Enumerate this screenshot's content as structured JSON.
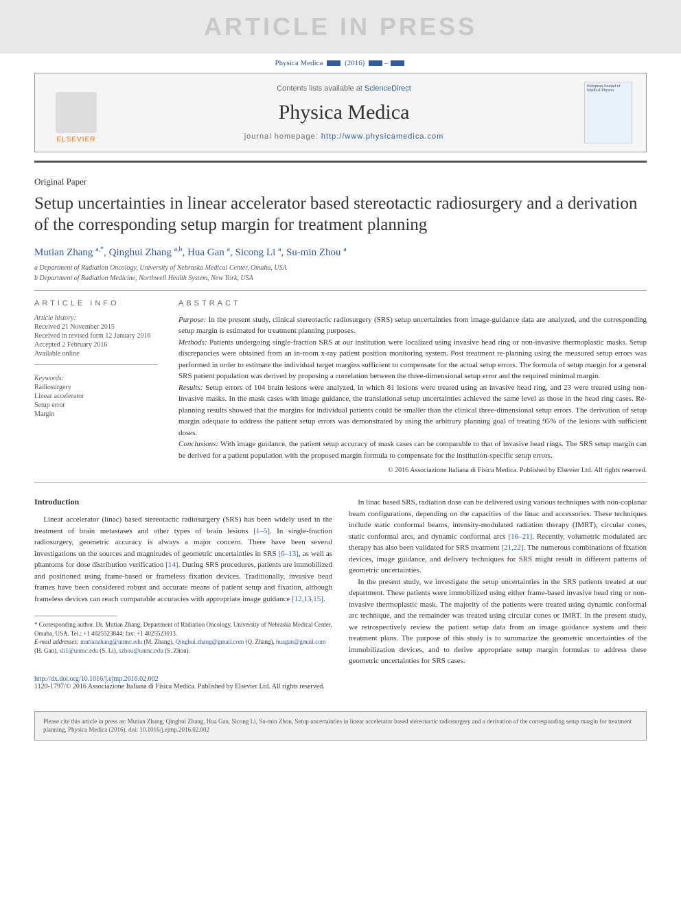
{
  "watermark": "ARTICLE IN PRESS",
  "journal_ref": {
    "name": "Physica Medica",
    "year": "(2016)"
  },
  "header": {
    "contents_text": "Contents lists available at ",
    "contents_link": "ScienceDirect",
    "journal_name": "Physica Medica",
    "homepage_label": "journal homepage: ",
    "homepage_url": "http://www.physicamedica.com",
    "publisher": "ELSEVIER",
    "cover_text": "European Journal of Medical Physics"
  },
  "article": {
    "type": "Original Paper",
    "title": "Setup uncertainties in linear accelerator based stereotactic radiosurgery and a derivation of the corresponding setup margin for treatment planning",
    "authors_html": "Mutian Zhang <sup>a,*</sup>, Qinghui Zhang <sup>a,b</sup>, Hua Gan <sup>a</sup>, Sicong Li <sup>a</sup>, Su-min Zhou <sup>a</sup>",
    "affiliations": [
      "a Department of Radiation Oncology, University of Nebraska Medical Center, Omaha, USA",
      "b Department of Radiation Medicine, Northwell Health System, New York, USA"
    ]
  },
  "info": {
    "heading": "ARTICLE INFO",
    "history_label": "Article history:",
    "history": [
      "Received 21 November 2015",
      "Received in revised form 12 January 2016",
      "Accepted 2 February 2016",
      "Available online"
    ],
    "keywords_label": "Keywords:",
    "keywords": [
      "Radiosurgery",
      "Linear accelerator",
      "Setup error",
      "Margin"
    ]
  },
  "abstract": {
    "heading": "ABSTRACT",
    "purpose_label": "Purpose:",
    "purpose": "In the present study, clinical stereotactic radiosurgery (SRS) setup uncertainties from image-guidance data are analyzed, and the corresponding setup margin is estimated for treatment planning purposes.",
    "methods_label": "Methods:",
    "methods": "Patients undergoing single-fraction SRS at our institution were localized using invasive head ring or non-invasive thermoplastic masks. Setup discrepancies were obtained from an in-room x-ray patient position monitoring system. Post treatment re-planning using the measured setup errors was performed in order to estimate the individual target margins sufficient to compensate for the actual setup errors. The formula of setup margin for a general SRS patient population was derived by proposing a correlation between the three-dimensional setup error and the required minimal margin.",
    "results_label": "Results:",
    "results": "Setup errors of 104 brain lesions were analyzed, in which 81 lesions were treated using an invasive head ring, and 23 were treated using non-invasive masks. In the mask cases with image guidance, the translational setup uncertainties achieved the same level as those in the head ring cases. Re-planning results showed that the margins for individual patients could be smaller than the clinical three-dimensional setup errors. The derivation of setup margin adequate to address the patient setup errors was demonstrated by using the arbitrary planning goal of treating 95% of the lesions with sufficient doses.",
    "conclusions_label": "Conclusions:",
    "conclusions": "With image guidance, the patient setup accuracy of mask cases can be comparable to that of invasive head rings. The SRS setup margin can be derived for a patient population with the proposed margin formula to compensate for the institution-specific setup errors.",
    "copyright": "© 2016 Associazione Italiana di Fisica Medica. Published by Elsevier Ltd. All rights reserved."
  },
  "body": {
    "intro_heading": "Introduction",
    "para1_pre": "Linear accelerator (linac) based stereotactic radiosurgery (SRS) has been widely used in the treatment of brain metastases and other types of brain lesions ",
    "ref1": "[1–5]",
    "para1_mid": ". In single-fraction radiosurgery, geometric accuracy is always a major concern. There have been several investigations on the sources and magnitudes of geometric uncertainties in SRS ",
    "ref2": "[6–13]",
    "para1_mid2": ", as well as phantoms for dose distribution verification ",
    "ref3": "[14]",
    "para1_mid3": ". During SRS procedures, patients are immobilized and positioned using frame-based or frameless fixation devices. Traditionally, invasive head frames have been considered robust and accurate means of patient setup and fixation, although frameless devices can reach comparable accuracies with appropriate image guidance ",
    "ref4": "[12,13,15]",
    "para1_end": ".",
    "para2_pre": "In linac based SRS, radiation dose can be delivered using various techniques with non-coplanar beam configurations, depending on the capacities of the linac and accessories. These techniques include static conformal beams, intensity-modulated radiation therapy (IMRT), circular cones, static conformal arcs, and dynamic conformal arcs ",
    "ref5": "[16–21]",
    "para2_mid": ". Recently, volumetric modulated arc therapy has also been validated for SRS treatment ",
    "ref6": "[21,22]",
    "para2_end": ". The numerous combinations of fixation devices, image guidance, and delivery techniques for SRS might result in different patterns of geometric uncertainties.",
    "para3": "In the present study, we investigate the setup uncertainties in the SRS patients treated at our department. These patients were immobilized using either frame-based invasive head ring or non-invasive thermoplastic mask. The majority of the patients were treated using dynamic conformal arc technique, and the remainder was treated using circular cones or IMRT. In the present study, we retrospectively review the patient setup data from an image guidance system and their treatment plans. The purpose of this study is to summarize the geometric uncertainties of the immobilization devices, and to derive appropriate setup margin formulas to address these geometric uncertainties for SRS cases."
  },
  "footnote": {
    "corresponding": "* Corresponding author. Dr. Mutian Zhang, Department of Radiation Oncology, University of Nebraska Medical Center, Omaha, USA. Tel.: +1 4025523844; fax: +1 4025523013.",
    "emails_label": "E-mail addresses:",
    "emails": [
      {
        "addr": "mutianzhang@unmc.edu",
        "name": "(M. Zhang)"
      },
      {
        "addr": "Qinghui.zhang@gmail.com",
        "name": "(Q. Zhang)"
      },
      {
        "addr": "huagan@gmail.com",
        "name": "(H. Gan)"
      },
      {
        "addr": "sli1@unmc.edu",
        "name": "(S. Li)"
      },
      {
        "addr": "szhou@unmc.edu",
        "name": "(S. Zhou)"
      }
    ]
  },
  "doi": {
    "url": "http://dx.doi.org/10.1016/j.ejmp.2016.02.002",
    "issn_line": "1120-1797/© 2016 Associazione Italiana di Fisica Medica. Published by Elsevier Ltd. All rights reserved."
  },
  "cite_box": "Please cite this article in press as: Mutian Zhang, Qinghui Zhang, Hua Gan, Sicong Li, Su-min Zhou, Setup uncertainties in linear accelerator based stereotactic radiosurgery and a derivation of the corresponding setup margin for treatment planning, Physica Medica (2016), doi: 10.1016/j.ejmp.2016.02.002",
  "colors": {
    "link": "#2e5c9e",
    "watermark_bg": "#e8e8e8",
    "watermark_fg": "#c8c8c8",
    "elsevier_orange": "#ff6b00",
    "divider": "#555555"
  }
}
